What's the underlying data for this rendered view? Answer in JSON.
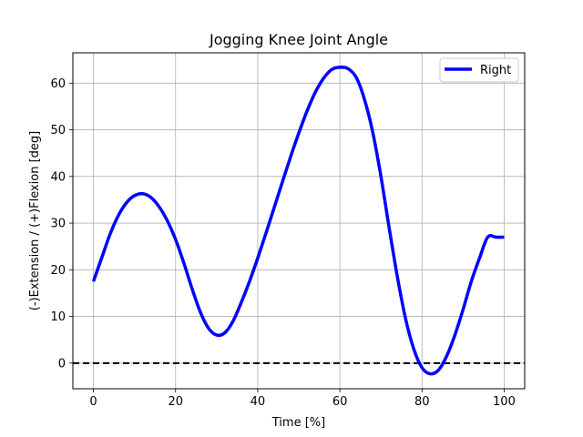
{
  "chart_data": {
    "type": "line",
    "title": "Jogging Knee Joint Angle",
    "xlabel": "Time [%]",
    "ylabel": "(-)Extension / (+)Flexion [deg]",
    "xlim": [
      -5,
      105
    ],
    "ylim": [
      -5.5,
      66.5
    ],
    "xticks": [
      0,
      20,
      40,
      60,
      80,
      100
    ],
    "yticks": [
      0,
      10,
      20,
      30,
      40,
      50,
      60
    ],
    "grid": true,
    "legend_position": "top-right",
    "series": [
      {
        "name": "Right",
        "color": "#0000ff",
        "x": [
          0,
          2,
          4,
          6,
          8,
          10,
          12,
          14,
          16,
          18,
          20,
          22,
          24,
          26,
          28,
          30,
          32,
          34,
          36,
          38,
          40,
          42,
          44,
          46,
          48,
          50,
          52,
          54,
          56,
          58,
          60,
          62,
          64,
          66,
          68,
          70,
          72,
          74,
          76,
          78,
          80,
          82,
          84,
          86,
          88,
          90,
          92,
          94,
          96,
          98,
          100
        ],
        "y": [
          17.5,
          22.5,
          27.5,
          31.5,
          34.3,
          35.9,
          36.3,
          35.5,
          33.5,
          30.5,
          26.5,
          21.5,
          16.0,
          11.0,
          7.5,
          6.0,
          6.5,
          9.0,
          13.0,
          17.5,
          22.5,
          27.8,
          33.3,
          38.8,
          44.2,
          49.3,
          54.0,
          58.0,
          61.0,
          62.9,
          63.4,
          63.1,
          61.2,
          56.5,
          49.5,
          40.0,
          29.0,
          18.5,
          9.5,
          3.0,
          -1.0,
          -2.3,
          -1.5,
          1.5,
          6.0,
          11.5,
          17.5,
          22.5,
          27.0,
          27.0,
          27.0
        ]
      }
    ],
    "reference_line": {
      "y": 0,
      "style": "dashed",
      "color": "#000000"
    }
  }
}
